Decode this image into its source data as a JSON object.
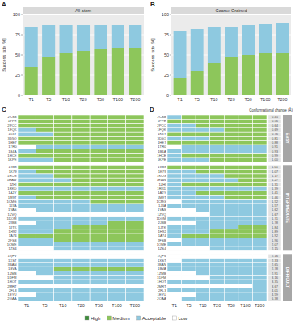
{
  "legend_items": [
    {
      "name": "High",
      "code": "H",
      "color": "#3d8c3a"
    },
    {
      "name": "Medium",
      "code": "M",
      "color": "#8dc65b"
    },
    {
      "name": "Acceptable",
      "code": "A",
      "color": "#8ec9e0"
    },
    {
      "name": "Low",
      "code": "L",
      "color": "#ffffff"
    }
  ],
  "structures": {
    "change_label": "Conformational change (Å)",
    "groups": [
      {
        "name": "EASY",
        "complexes": [
          "2CSB",
          "1PPE",
          "2PCC",
          "1FQK",
          "1K5Y",
          "3D5O",
          "1HE7",
          "1TR0",
          "1B4A",
          "1HCE",
          "1KPE"
        ],
        "changes": [
          "0.45",
          "0.56",
          "0.64",
          "0.69",
          "0.76",
          "0.81",
          "0.88",
          "0.91",
          "0.93",
          "0.99",
          "1.00"
        ]
      },
      {
        "name": "INTERMEDIATE",
        "complexes": [
          "1VB8",
          "1K79",
          "1KCG",
          "1EAW",
          "1ZHI",
          "1RKD",
          "1A2Y",
          "1M9T",
          "1CMG",
          "1J3A",
          "1VAS",
          "1ZVQ",
          "1DOM",
          "2JBB",
          "1JTK",
          "1H92",
          "1A74",
          "2FSB",
          "1QME",
          "1ZS4"
        ],
        "changes": [
          "1.01",
          "1.07",
          "1.17",
          "1.27",
          "1.31",
          "1.39",
          "1.41",
          "1.46",
          "1.52",
          "1.57",
          "1.62",
          "1.67",
          "1.71",
          "1.78",
          "1.84",
          "1.89",
          "1.92",
          "1.96",
          "2.07",
          "2.15"
        ]
      },
      {
        "name": "DIFFICULT",
        "complexes": [
          "1QFV",
          "1XST",
          "3BAN",
          "1BVA",
          "1ZMB",
          "1DFM",
          "1HOT",
          "2MRT",
          "2FL3",
          "1EYU",
          "2OAA"
        ],
        "changes": [
          "2.16",
          "2.33",
          "2.65",
          "2.78",
          "2.91",
          "3.16",
          "3.35",
          "3.67",
          "4.01",
          "4.59",
          "6.38"
        ]
      }
    ]
  },
  "chart_data": [
    {
      "type": "bar",
      "panel": "A",
      "title": "All-atom",
      "ylabel": "Success rate [%]",
      "stacked": true,
      "grid": true,
      "categories": [
        "T1",
        "T5",
        "T10",
        "T20",
        "T50",
        "T100",
        "T200"
      ],
      "series": [
        {
          "name": "Medium",
          "values": [
            35,
            47,
            53,
            55,
            57,
            59,
            58
          ]
        },
        {
          "name": "Acceptable",
          "values": [
            50,
            40,
            34,
            32,
            30,
            28,
            29
          ]
        }
      ],
      "ylim": [
        0,
        100
      ],
      "yticks": [
        0,
        25,
        50,
        75,
        100
      ]
    },
    {
      "type": "bar",
      "panel": "B",
      "title": "Coarse-Grained",
      "ylabel": "Success rate [%]",
      "stacked": true,
      "grid": true,
      "categories": [
        "T1",
        "T5",
        "T10",
        "T20",
        "T50",
        "T100",
        "T200"
      ],
      "series": [
        {
          "name": "Medium",
          "values": [
            22,
            30,
            40,
            48,
            50,
            52,
            53
          ]
        },
        {
          "name": "Acceptable",
          "values": [
            58,
            52,
            44,
            37,
            37,
            36,
            37
          ]
        }
      ],
      "ylim": [
        0,
        100
      ],
      "yticks": [
        0,
        25,
        50,
        75,
        100
      ]
    },
    {
      "type": "heatmap",
      "panel": "C",
      "categories": [
        "T1",
        "T5",
        "T10",
        "T20",
        "T50",
        "T100",
        "T200"
      ],
      "cells": [
        [
          "M",
          "M",
          "M",
          "M",
          "M",
          "M",
          "M"
        ],
        [
          "M",
          "M",
          "M",
          "M",
          "M",
          "M",
          "M"
        ],
        [
          "M",
          "M",
          "M",
          "M",
          "M",
          "M",
          "M"
        ],
        [
          "A",
          "M",
          "M",
          "M",
          "M",
          "M",
          "M"
        ],
        [
          "A",
          "A",
          "M",
          "M",
          "M",
          "M",
          "M"
        ],
        [
          "M",
          "M",
          "M",
          "M",
          "M",
          "M",
          "M"
        ],
        [
          "M",
          "M",
          "M",
          "M",
          "M",
          "M",
          "M"
        ],
        [
          "L",
          "A",
          "A",
          "A",
          "A",
          "A",
          "A"
        ],
        [
          "A",
          "M",
          "M",
          "M",
          "M",
          "M",
          "M"
        ],
        [
          "M",
          "M",
          "M",
          "M",
          "M",
          "M",
          "M"
        ],
        [
          "A",
          "A",
          "M",
          "M",
          "M",
          "M",
          "M"
        ],
        [
          "M",
          "M",
          "M",
          "M",
          "M",
          "M",
          "M"
        ],
        [
          "A",
          "M",
          "M",
          "M",
          "M",
          "M",
          "M"
        ],
        [
          "A",
          "A",
          "M",
          "M",
          "M",
          "M",
          "M"
        ],
        [
          "A",
          "A",
          "A",
          "M",
          "M",
          "M",
          "M"
        ],
        [
          "M",
          "M",
          "M",
          "M",
          "M",
          "M",
          "M"
        ],
        [
          "A",
          "A",
          "A",
          "A",
          "A",
          "A",
          "A"
        ],
        [
          "M",
          "M",
          "M",
          "M",
          "M",
          "M",
          "M"
        ],
        [
          "A",
          "M",
          "M",
          "M",
          "M",
          "M",
          "M"
        ],
        [
          "A",
          "A",
          "A",
          "A",
          "M",
          "M",
          "M"
        ],
        [
          "A",
          "A",
          "A",
          "A",
          "A",
          "A",
          "A"
        ],
        [
          "L",
          "A",
          "A",
          "A",
          "A",
          "A",
          "A"
        ],
        [
          "L",
          "L",
          "L",
          "L",
          "L",
          "L",
          "L"
        ],
        [
          "A",
          "A",
          "A",
          "A",
          "A",
          "A",
          "A"
        ],
        [
          "L",
          "A",
          "A",
          "A",
          "A",
          "M",
          "M"
        ],
        [
          "A",
          "A",
          "A",
          "M",
          "M",
          "M",
          "M"
        ],
        [
          "A",
          "A",
          "M",
          "M",
          "M",
          "M",
          "M"
        ],
        [
          "M",
          "M",
          "M",
          "M",
          "M",
          "M",
          "M"
        ],
        [
          "A",
          "A",
          "M",
          "M",
          "M",
          "M",
          "M"
        ],
        [
          "A",
          "A",
          "A",
          "A",
          "A",
          "A",
          "A"
        ],
        [
          "L",
          "L",
          "A",
          "A",
          "A",
          "A",
          "A"
        ],
        [
          "L",
          "L",
          "L",
          "L",
          "L",
          "L",
          "L"
        ],
        [
          "A",
          "A",
          "A",
          "A",
          "A",
          "A",
          "A"
        ],
        [
          "A",
          "A",
          "A",
          "A",
          "A",
          "A",
          "A"
        ],
        [
          "A",
          "A",
          "M",
          "M",
          "M",
          "M",
          "M"
        ],
        [
          "L",
          "A",
          "A",
          "A",
          "A",
          "A",
          "A"
        ],
        [
          "L",
          "L",
          "A",
          "A",
          "A",
          "A",
          "A"
        ],
        [
          "A",
          "A",
          "A",
          "A",
          "A",
          "A",
          "A"
        ],
        [
          "L",
          "L",
          "L",
          "L",
          "L",
          "L",
          "L"
        ],
        [
          "A",
          "A",
          "A",
          "A",
          "A",
          "A",
          "A"
        ],
        [
          "L",
          "A",
          "A",
          "A",
          "A",
          "A",
          "A"
        ],
        [
          "A",
          "A",
          "A",
          "A",
          "A",
          "A",
          "A"
        ]
      ]
    },
    {
      "type": "heatmap",
      "panel": "D",
      "categories": [
        "T1",
        "T5",
        "T10",
        "T20",
        "T50",
        "T100",
        "T200"
      ],
      "cells": [
        [
          "A",
          "M",
          "M",
          "M",
          "M",
          "M",
          "M"
        ],
        [
          "M",
          "M",
          "M",
          "M",
          "M",
          "M",
          "M"
        ],
        [
          "A",
          "A",
          "M",
          "M",
          "M",
          "M",
          "M"
        ],
        [
          "A",
          "A",
          "A",
          "A",
          "M",
          "M",
          "M"
        ],
        [
          "M",
          "M",
          "M",
          "M",
          "M",
          "M",
          "M"
        ],
        [
          "A",
          "A",
          "A",
          "M",
          "M",
          "M",
          "M"
        ],
        [
          "M",
          "M",
          "M",
          "M",
          "M",
          "M",
          "M"
        ],
        [
          "L",
          "A",
          "A",
          "A",
          "A",
          "A",
          "A"
        ],
        [
          "A",
          "A",
          "A",
          "A",
          "A",
          "A",
          "A"
        ],
        [
          "A",
          "M",
          "M",
          "M",
          "M",
          "M",
          "M"
        ],
        [
          "A",
          "A",
          "A",
          "M",
          "M",
          "M",
          "M"
        ],
        [
          "M",
          "M",
          "M",
          "M",
          "M",
          "M",
          "M"
        ],
        [
          "A",
          "A",
          "M",
          "M",
          "M",
          "M",
          "M"
        ],
        [
          "A",
          "A",
          "A",
          "A",
          "M",
          "M",
          "M"
        ],
        [
          "A",
          "A",
          "A",
          "A",
          "A",
          "M",
          "M"
        ],
        [
          "A",
          "M",
          "M",
          "M",
          "M",
          "M",
          "M"
        ],
        [
          "A",
          "A",
          "A",
          "A",
          "A",
          "A",
          "A"
        ],
        [
          "A",
          "A",
          "M",
          "M",
          "M",
          "M",
          "M"
        ],
        [
          "A",
          "A",
          "A",
          "A",
          "M",
          "M",
          "M"
        ],
        [
          "L",
          "A",
          "A",
          "A",
          "A",
          "A",
          "A"
        ],
        [
          "A",
          "A",
          "A",
          "A",
          "A",
          "A",
          "A"
        ],
        [
          "L",
          "L",
          "A",
          "A",
          "A",
          "A",
          "A"
        ],
        [
          "L",
          "L",
          "L",
          "A",
          "A",
          "A",
          "A"
        ],
        [
          "A",
          "A",
          "A",
          "A",
          "A",
          "A",
          "A"
        ],
        [
          "L",
          "L",
          "A",
          "A",
          "A",
          "A",
          "A"
        ],
        [
          "A",
          "A",
          "A",
          "A",
          "A",
          "M",
          "M"
        ],
        [
          "A",
          "A",
          "A",
          "M",
          "M",
          "M",
          "M"
        ],
        [
          "A",
          "M",
          "M",
          "M",
          "M",
          "M",
          "M"
        ],
        [
          "L",
          "A",
          "A",
          "A",
          "A",
          "A",
          "A"
        ],
        [
          "A",
          "A",
          "A",
          "A",
          "A",
          "A",
          "A"
        ],
        [
          "L",
          "L",
          "L",
          "A",
          "A",
          "A",
          "A"
        ],
        [
          "L",
          "L",
          "L",
          "L",
          "L",
          "L",
          "L"
        ],
        [
          "L",
          "A",
          "A",
          "A",
          "A",
          "A",
          "A"
        ],
        [
          "A",
          "A",
          "A",
          "A",
          "A",
          "A",
          "A"
        ],
        [
          "A",
          "A",
          "A",
          "A",
          "A",
          "A",
          "A"
        ],
        [
          "L",
          "L",
          "A",
          "A",
          "A",
          "A",
          "A"
        ],
        [
          "L",
          "L",
          "L",
          "A",
          "A",
          "A",
          "A"
        ],
        [
          "A",
          "A",
          "A",
          "A",
          "A",
          "A",
          "A"
        ],
        [
          "L",
          "L",
          "L",
          "L",
          "L",
          "L",
          "A"
        ],
        [
          "A",
          "A",
          "A",
          "A",
          "A",
          "A",
          "A"
        ],
        [
          "L",
          "L",
          "A",
          "A",
          "A",
          "A",
          "A"
        ],
        [
          "L",
          "A",
          "A",
          "A",
          "A",
          "A",
          "A"
        ]
      ]
    }
  ]
}
